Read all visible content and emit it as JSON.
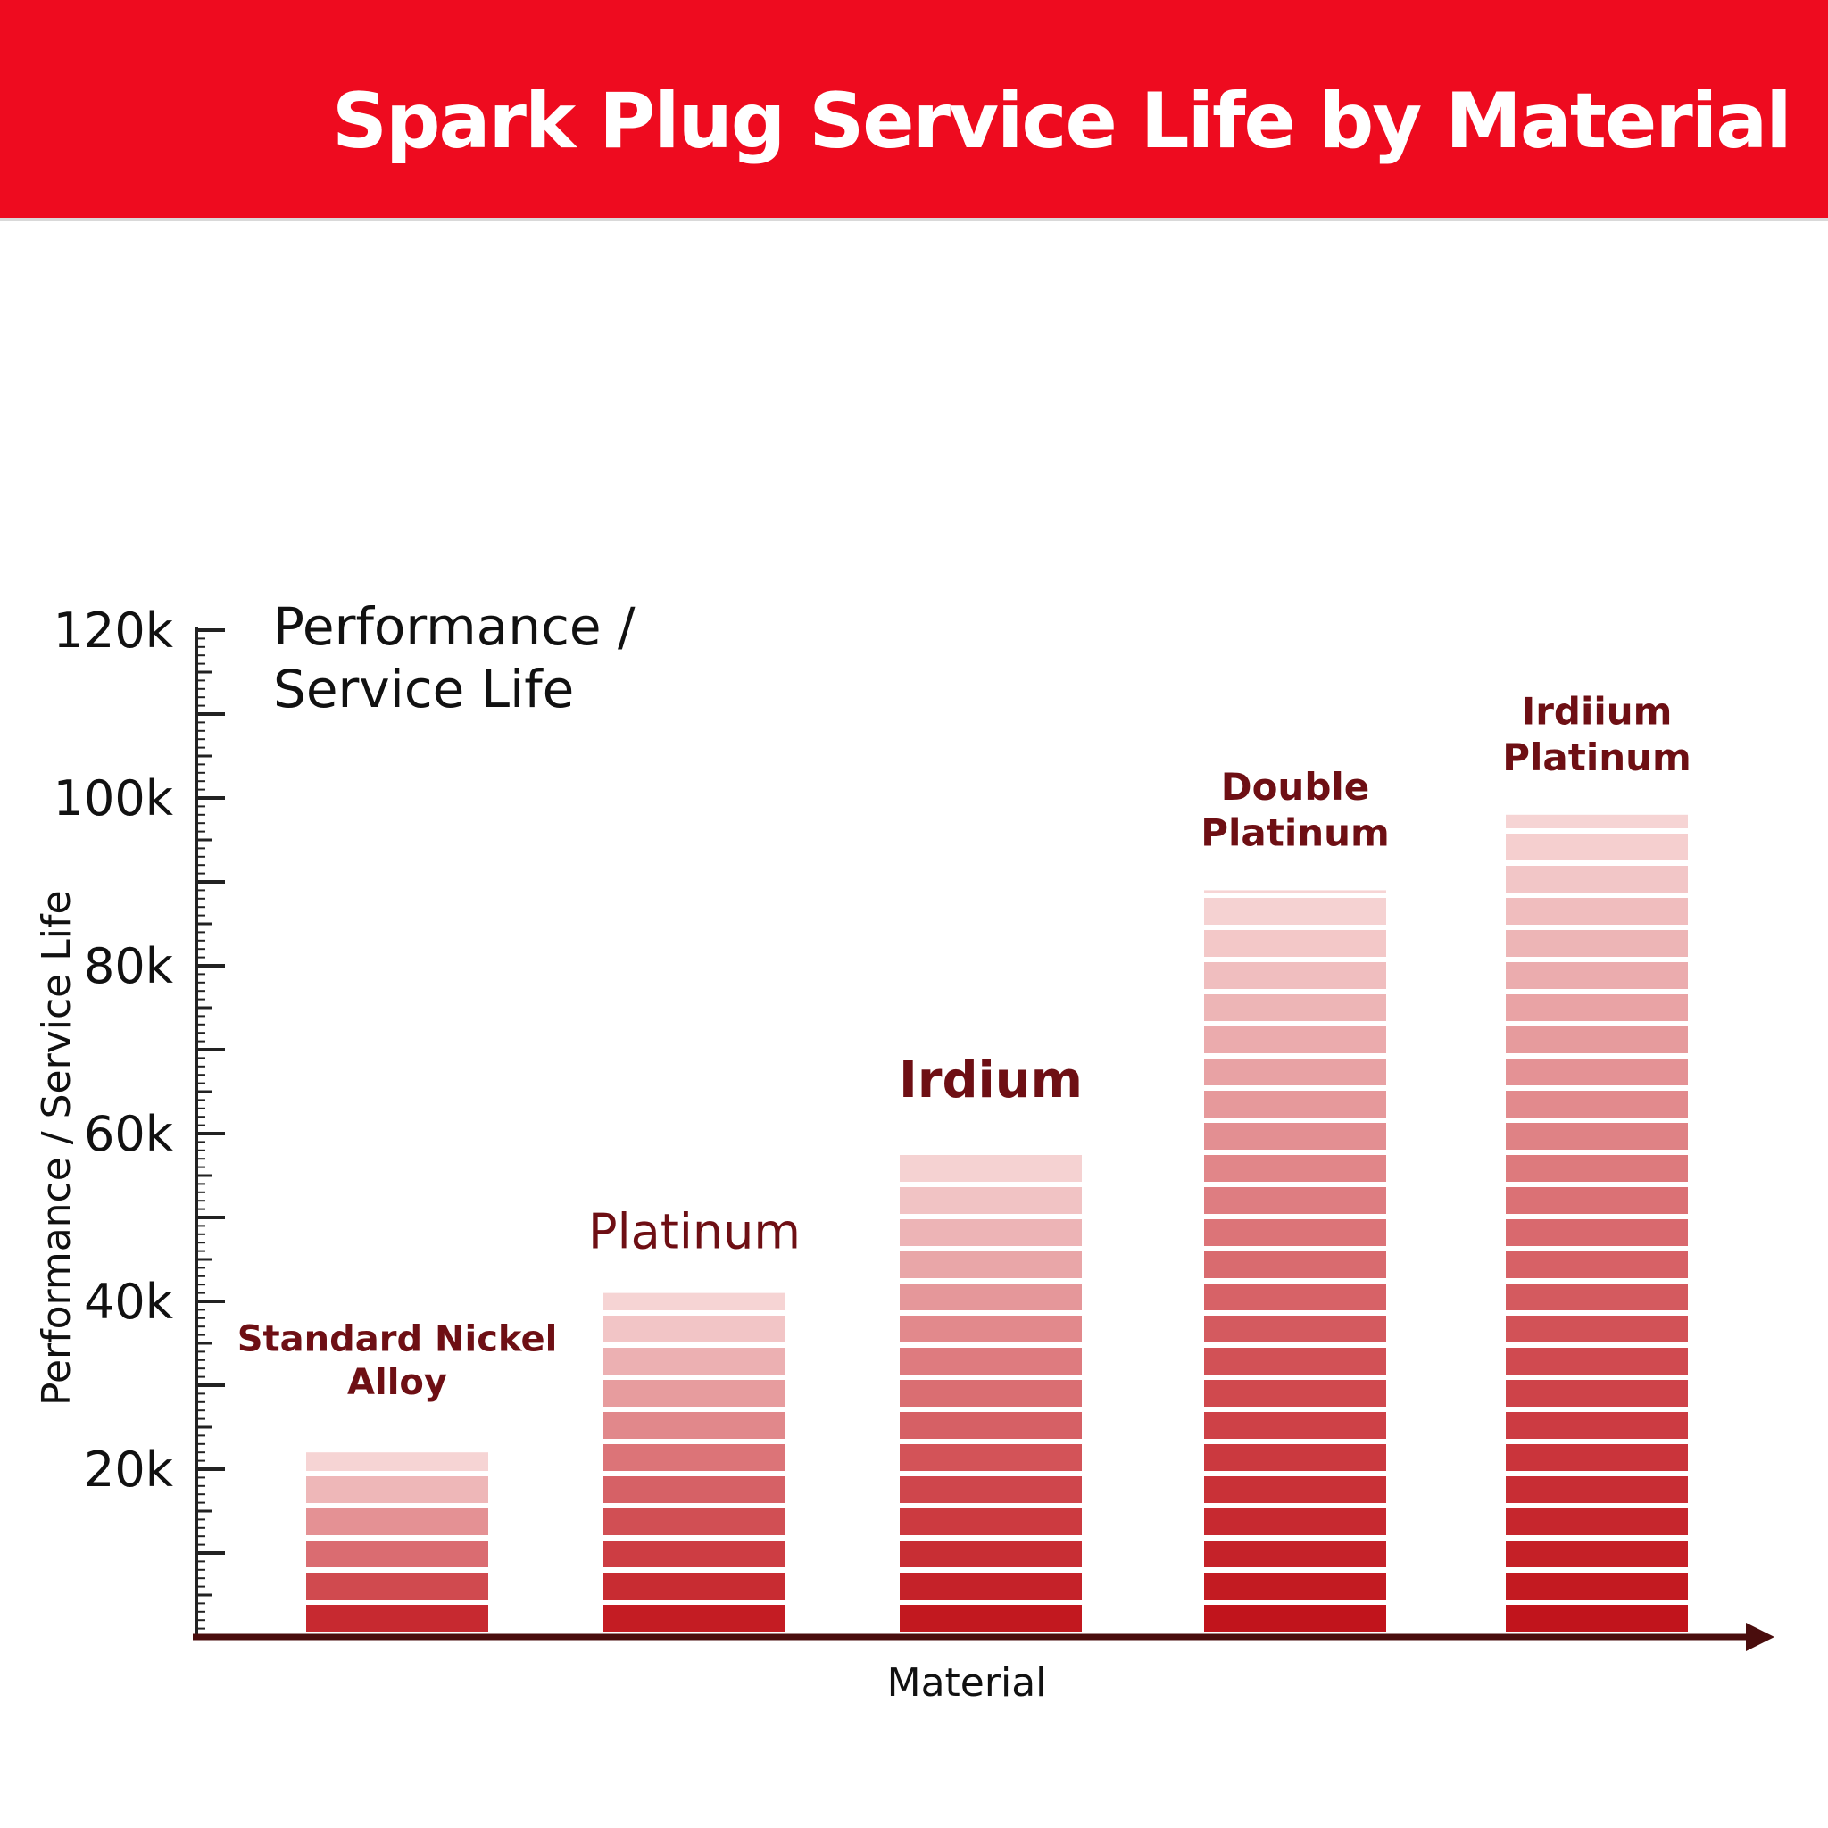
{
  "header": {
    "title": "Spark Plug Service Life by Material",
    "background_color": "#ee0b1f"
  },
  "chart_data": {
    "type": "bar",
    "title": "Spark Plug Service Life by Material",
    "corner_label": [
      "Performance /",
      "Service Life"
    ],
    "xlabel": "Material",
    "ylabel": "Performance / Service Life",
    "ylim": [
      0,
      120000
    ],
    "yticks": [
      20000,
      40000,
      60000,
      80000,
      100000,
      120000
    ],
    "ytick_labels": [
      "20k",
      "40k",
      "60k",
      "80k",
      "100k",
      "120k"
    ],
    "categories": [
      "Standard Nickel Alloy",
      "Platinum",
      "Irdium",
      "Double Platinum",
      "Irdiium Platinum"
    ],
    "category_label_lines": [
      [
        "Standard Nickel",
        "Alloy"
      ],
      [
        "Platinum"
      ],
      [
        "Irdium"
      ],
      [
        "Double",
        "Platinum"
      ],
      [
        "Irdiium",
        "Platinum"
      ]
    ],
    "values": [
      22000,
      41000,
      58000,
      89000,
      98000
    ],
    "grid": false,
    "colors": {
      "bar_base": "#c00f17",
      "bar_top": "#f6d4d4",
      "label": "#6e0f14",
      "axis": "#4a0d0d"
    }
  }
}
